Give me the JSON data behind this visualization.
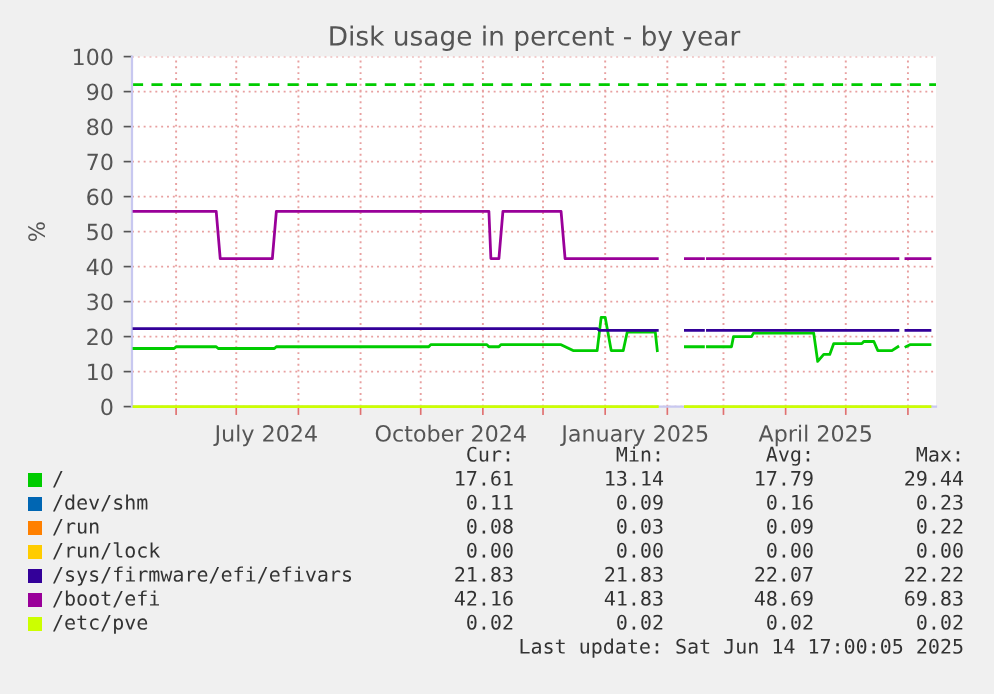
{
  "chart_data": {
    "type": "line",
    "title": "Disk usage in percent - by year",
    "ylabel": "%",
    "xlim": [
      "2024-05-10",
      "2025-06-15"
    ],
    "ylim": [
      0,
      100
    ],
    "yticks": [
      0,
      10,
      20,
      30,
      40,
      50,
      60,
      70,
      80,
      90,
      100
    ],
    "xticks": [
      {
        "value": "2024-06-01",
        "label": null
      },
      {
        "value": "2024-07-01",
        "label": null
      },
      {
        "value": "2024-07-16",
        "label": "July 2024"
      },
      {
        "value": "2024-08-01",
        "label": null
      },
      {
        "value": "2024-09-01",
        "label": null
      },
      {
        "value": "2024-10-01",
        "label": null
      },
      {
        "value": "2024-10-16",
        "label": "October 2024"
      },
      {
        "value": "2024-11-01",
        "label": null
      },
      {
        "value": "2024-12-01",
        "label": null
      },
      {
        "value": "2025-01-01",
        "label": null
      },
      {
        "value": "2025-01-16",
        "label": "January 2025"
      },
      {
        "value": "2025-02-01",
        "label": null
      },
      {
        "value": "2025-03-01",
        "label": null
      },
      {
        "value": "2025-04-01",
        "label": null
      },
      {
        "value": "2025-04-16",
        "label": "April 2025"
      },
      {
        "value": "2025-05-01",
        "label": null
      },
      {
        "value": "2025-06-01",
        "label": null
      }
    ],
    "grid": true,
    "legend": "bottom",
    "ref_lines": [
      {
        "axis": "y",
        "value": 92,
        "color": "#00cc00",
        "line_style": "dashed"
      }
    ],
    "series": [
      {
        "name": "/",
        "color": "#00cc00",
        "x": [
          "2024-05-11",
          "2024-05-31",
          "2024-06-01",
          "2024-06-21",
          "2024-06-22",
          "2024-07-20",
          "2024-07-21",
          "2024-10-05",
          "2024-10-06",
          "2024-11-03",
          "2024-11-04",
          "2024-11-09",
          "2024-11-10",
          "2024-12-10",
          "2024-12-16",
          "2024-12-28",
          "2024-12-30",
          "2025-01-01",
          "2025-01-04",
          "2025-01-10",
          "2025-01-12",
          "2025-01-26",
          "2025-01-27",
          "2025-02-03",
          "2025-02-10",
          "2025-02-19",
          "2025-02-20",
          "2025-02-21",
          "2025-03-05",
          "2025-03-06",
          "2025-03-15",
          "2025-03-16",
          "2025-04-15",
          "2025-04-17",
          "2025-04-20",
          "2025-04-23",
          "2025-04-25",
          "2025-05-09",
          "2025-05-10",
          "2025-05-15",
          "2025-05-17",
          "2025-05-24",
          "2025-05-27",
          "2025-05-28",
          "2025-05-31",
          "2025-06-02",
          "2025-06-12"
        ],
        "values": [
          16.6,
          16.6,
          17.1,
          17.1,
          16.6,
          16.6,
          17.1,
          17.1,
          17.7,
          17.7,
          17.1,
          17.1,
          17.7,
          17.7,
          16.0,
          16.0,
          25.5,
          25.5,
          16.0,
          16.0,
          21.3,
          21.3,
          16.0,
          null,
          17.1,
          17.1,
          null,
          17.1,
          17.1,
          20.0,
          20.0,
          21.0,
          21.0,
          12.9,
          14.9,
          14.9,
          18.0,
          18.0,
          18.6,
          18.6,
          16.0,
          16.0,
          17.1,
          null,
          17.1,
          17.7,
          17.7
        ]
      },
      {
        "name": "/dev/shm",
        "color": "#0066b3"
      },
      {
        "name": "/run",
        "color": "#ff8000"
      },
      {
        "name": "/run/lock",
        "color": "#ffcc00"
      },
      {
        "name": "/sys/firmware/efi/efivars",
        "color": "#330099",
        "x": [
          "2024-05-11",
          "2024-12-28",
          "2024-12-29",
          "2025-01-27",
          "2025-02-03",
          "2025-02-10",
          "2025-02-19",
          "2025-02-20",
          "2025-02-21",
          "2025-05-27",
          "2025-05-28",
          "2025-05-31",
          "2025-06-12"
        ],
        "values": [
          22.3,
          22.3,
          21.8,
          21.8,
          null,
          21.8,
          21.8,
          null,
          21.8,
          21.8,
          null,
          21.8,
          21.8
        ]
      },
      {
        "name": "/boot/efi",
        "color": "#990099",
        "x": [
          "2024-05-11",
          "2024-06-21",
          "2024-06-23",
          "2024-07-19",
          "2024-07-21",
          "2024-11-04",
          "2024-11-05",
          "2024-11-09",
          "2024-11-11",
          "2024-12-10",
          "2024-12-12",
          "2025-01-27",
          "2025-02-03",
          "2025-02-10",
          "2025-02-19",
          "2025-02-20",
          "2025-02-21",
          "2025-05-27",
          "2025-05-28",
          "2025-05-31",
          "2025-06-12"
        ],
        "values": [
          55.8,
          55.8,
          42.3,
          42.3,
          55.8,
          55.8,
          42.3,
          42.3,
          55.8,
          55.8,
          42.3,
          42.3,
          null,
          42.3,
          42.3,
          null,
          42.3,
          42.3,
          null,
          42.3,
          42.3
        ]
      },
      {
        "name": "/etc/pve",
        "color": "#ccff00",
        "x": [
          "2024-05-11",
          "2025-01-27",
          "2025-02-03",
          "2025-02-10",
          "2025-06-12"
        ],
        "values": [
          0,
          0,
          null,
          0,
          0
        ]
      }
    ],
    "annotations": [
      "Cur:",
      "Min:",
      "Avg:",
      "Max:",
      "17.61",
      "13.14",
      "17.79",
      "29.44",
      "0.11",
      "0.09",
      "0.16",
      "0.23",
      "0.08",
      "0.03",
      "0.09",
      "0.22",
      "0.00",
      "0.00",
      "0.00",
      "0.00",
      "21.83",
      "21.83",
      "22.07",
      "22.22",
      "42.16",
      "41.83",
      "48.69",
      "69.83",
      "0.02",
      "0.02",
      "0.02",
      "0.02",
      "Last update: Sat Jun 14 17:00:05 2025"
    ]
  }
}
